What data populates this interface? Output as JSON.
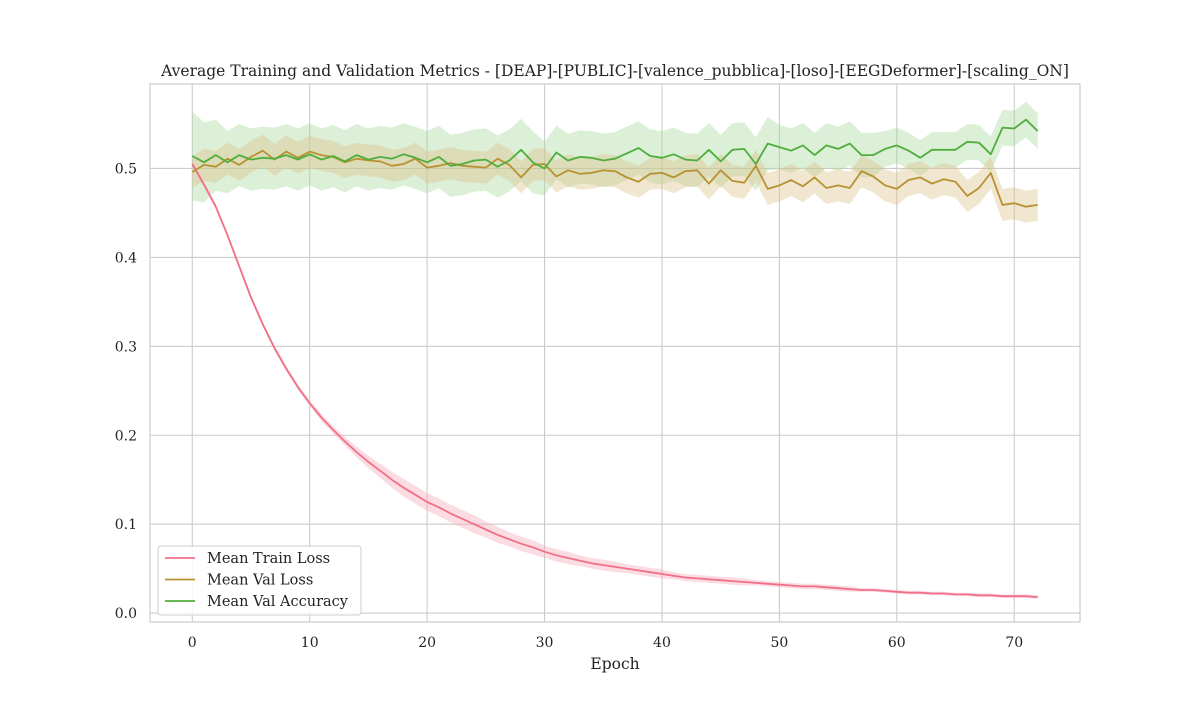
{
  "chart_data": {
    "type": "line",
    "title": "Average Training and Validation Metrics - [DEAP]-[PUBLIC]-[valence_pubblica]-[loso]-[EEGDeformer]-[scaling_ON]",
    "xlabel": "Epoch",
    "ylabel": "",
    "xlim": [
      -3.6,
      75.6
    ],
    "ylim": [
      -0.01,
      0.595
    ],
    "xticks": [
      0,
      10,
      20,
      30,
      40,
      50,
      60,
      70
    ],
    "yticks": [
      0.0,
      0.1,
      0.2,
      0.3,
      0.4,
      0.5
    ],
    "xtick_labels": [
      "0",
      "10",
      "20",
      "30",
      "40",
      "50",
      "60",
      "70"
    ],
    "ytick_labels": [
      "0.0",
      "0.1",
      "0.2",
      "0.3",
      "0.4",
      "0.5"
    ],
    "grid": true,
    "legend_position": "lower-left",
    "x": [
      0,
      1,
      2,
      3,
      4,
      5,
      6,
      7,
      8,
      9,
      10,
      11,
      12,
      13,
      14,
      15,
      16,
      17,
      18,
      19,
      20,
      21,
      22,
      23,
      24,
      25,
      26,
      27,
      28,
      29,
      30,
      31,
      32,
      33,
      34,
      35,
      36,
      37,
      38,
      39,
      40,
      41,
      42,
      43,
      44,
      45,
      46,
      47,
      48,
      49,
      50,
      51,
      52,
      53,
      54,
      55,
      56,
      57,
      58,
      59,
      60,
      61,
      62,
      63,
      64,
      65,
      66,
      67,
      68,
      69,
      70,
      71,
      72
    ],
    "series": [
      {
        "name": "Mean Train Loss",
        "color": "#f07087",
        "band_color": "#f7a8b8",
        "band_width": [
          0.003,
          0.003,
          0.003,
          0.003,
          0.003,
          0.003,
          0.003,
          0.003,
          0.003,
          0.003,
          0.003,
          0.004,
          0.004,
          0.005,
          0.006,
          0.007,
          0.008,
          0.009,
          0.01,
          0.01,
          0.01,
          0.01,
          0.01,
          0.01,
          0.01,
          0.009,
          0.009,
          0.008,
          0.008,
          0.008,
          0.007,
          0.007,
          0.007,
          0.006,
          0.006,
          0.006,
          0.006,
          0.005,
          0.005,
          0.005,
          0.005,
          0.004,
          0.004,
          0.004,
          0.004,
          0.004,
          0.004,
          0.004,
          0.003,
          0.003,
          0.003,
          0.003,
          0.003,
          0.003,
          0.003,
          0.003,
          0.003,
          0.002,
          0.002,
          0.002,
          0.002,
          0.002,
          0.002,
          0.002,
          0.002,
          0.002,
          0.002,
          0.002,
          0.002,
          0.002,
          0.002,
          0.002,
          0.002
        ],
        "values": [
          0.505,
          0.482,
          0.457,
          0.425,
          0.39,
          0.355,
          0.325,
          0.298,
          0.275,
          0.254,
          0.236,
          0.22,
          0.206,
          0.193,
          0.181,
          0.17,
          0.16,
          0.15,
          0.141,
          0.133,
          0.125,
          0.119,
          0.112,
          0.106,
          0.1,
          0.094,
          0.088,
          0.083,
          0.078,
          0.074,
          0.069,
          0.065,
          0.062,
          0.059,
          0.056,
          0.054,
          0.052,
          0.05,
          0.048,
          0.046,
          0.044,
          0.042,
          0.04,
          0.039,
          0.038,
          0.037,
          0.036,
          0.035,
          0.034,
          0.033,
          0.032,
          0.031,
          0.03,
          0.03,
          0.029,
          0.028,
          0.027,
          0.026,
          0.026,
          0.025,
          0.024,
          0.023,
          0.023,
          0.022,
          0.022,
          0.021,
          0.021,
          0.02,
          0.02,
          0.019,
          0.019,
          0.019,
          0.018
        ]
      },
      {
        "name": "Mean Val Loss",
        "color": "#b89232",
        "band_color": "#ddc48a",
        "band_width": [
          0.018,
          0.018,
          0.018,
          0.018,
          0.018,
          0.018,
          0.018,
          0.018,
          0.018,
          0.018,
          0.018,
          0.018,
          0.018,
          0.018,
          0.018,
          0.018,
          0.018,
          0.018,
          0.018,
          0.018,
          0.018,
          0.018,
          0.018,
          0.018,
          0.018,
          0.018,
          0.018,
          0.018,
          0.018,
          0.018,
          0.018,
          0.018,
          0.018,
          0.018,
          0.018,
          0.018,
          0.018,
          0.018,
          0.018,
          0.018,
          0.018,
          0.018,
          0.018,
          0.018,
          0.018,
          0.018,
          0.018,
          0.018,
          0.018,
          0.018,
          0.018,
          0.018,
          0.018,
          0.018,
          0.018,
          0.018,
          0.018,
          0.018,
          0.018,
          0.018,
          0.018,
          0.018,
          0.018,
          0.018,
          0.018,
          0.018,
          0.018,
          0.018,
          0.018,
          0.018,
          0.018,
          0.018,
          0.018
        ],
        "values": [
          0.496,
          0.504,
          0.502,
          0.511,
          0.504,
          0.513,
          0.52,
          0.51,
          0.519,
          0.512,
          0.519,
          0.515,
          0.513,
          0.507,
          0.511,
          0.509,
          0.508,
          0.503,
          0.505,
          0.511,
          0.501,
          0.503,
          0.506,
          0.503,
          0.502,
          0.501,
          0.511,
          0.504,
          0.49,
          0.504,
          0.505,
          0.491,
          0.498,
          0.494,
          0.495,
          0.498,
          0.497,
          0.49,
          0.485,
          0.494,
          0.495,
          0.49,
          0.497,
          0.498,
          0.483,
          0.498,
          0.486,
          0.484,
          0.503,
          0.477,
          0.481,
          0.487,
          0.48,
          0.49,
          0.478,
          0.481,
          0.478,
          0.497,
          0.491,
          0.481,
          0.477,
          0.487,
          0.49,
          0.483,
          0.488,
          0.485,
          0.469,
          0.478,
          0.495,
          0.459,
          0.461,
          0.457,
          0.459
        ]
      },
      {
        "name": "Mean Val Accuracy",
        "color": "#4fae3c",
        "band_color": "#a8d89c",
        "band_width": [
          0.05,
          0.045,
          0.04,
          0.035,
          0.035,
          0.035,
          0.035,
          0.035,
          0.035,
          0.035,
          0.035,
          0.035,
          0.035,
          0.035,
          0.035,
          0.035,
          0.035,
          0.035,
          0.035,
          0.035,
          0.035,
          0.035,
          0.035,
          0.035,
          0.035,
          0.035,
          0.035,
          0.035,
          0.035,
          0.035,
          0.03,
          0.03,
          0.03,
          0.03,
          0.03,
          0.03,
          0.03,
          0.03,
          0.03,
          0.03,
          0.03,
          0.03,
          0.03,
          0.03,
          0.03,
          0.03,
          0.03,
          0.03,
          0.03,
          0.03,
          0.025,
          0.025,
          0.025,
          0.025,
          0.025,
          0.025,
          0.025,
          0.025,
          0.025,
          0.02,
          0.02,
          0.02,
          0.02,
          0.02,
          0.02,
          0.02,
          0.02,
          0.02,
          0.02,
          0.02,
          0.02,
          0.02,
          0.02
        ],
        "values": [
          0.514,
          0.507,
          0.515,
          0.507,
          0.515,
          0.51,
          0.512,
          0.511,
          0.515,
          0.51,
          0.516,
          0.51,
          0.514,
          0.508,
          0.515,
          0.51,
          0.513,
          0.511,
          0.516,
          0.512,
          0.507,
          0.513,
          0.503,
          0.505,
          0.509,
          0.51,
          0.502,
          0.509,
          0.521,
          0.507,
          0.5,
          0.518,
          0.509,
          0.513,
          0.512,
          0.509,
          0.511,
          0.517,
          0.523,
          0.514,
          0.512,
          0.516,
          0.51,
          0.509,
          0.521,
          0.508,
          0.521,
          0.522,
          0.505,
          0.528,
          0.524,
          0.52,
          0.526,
          0.515,
          0.526,
          0.522,
          0.528,
          0.515,
          0.515,
          0.522,
          0.526,
          0.52,
          0.512,
          0.521,
          0.521,
          0.521,
          0.53,
          0.529,
          0.516,
          0.546,
          0.545,
          0.555,
          0.542
        ]
      }
    ]
  }
}
